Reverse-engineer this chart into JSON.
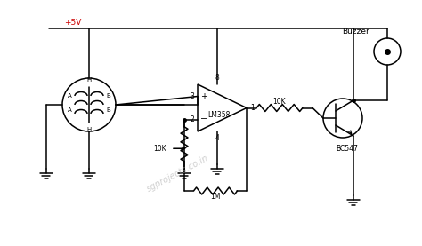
{
  "bg_color": "#ffffff",
  "line_color": "#000000",
  "vcc_color": "#cc0000",
  "watermark_color": "#b0b0b0",
  "vcc_label": "+5V",
  "ic_label": "LM358",
  "r1_label": "10K",
  "r2_label": "1M",
  "r3_label": "10K",
  "buzzer_label": "Buzzer",
  "transistor_label": "BC547",
  "figsize": [
    4.74,
    2.77
  ],
  "dpi": 100,
  "lw": 1.1
}
